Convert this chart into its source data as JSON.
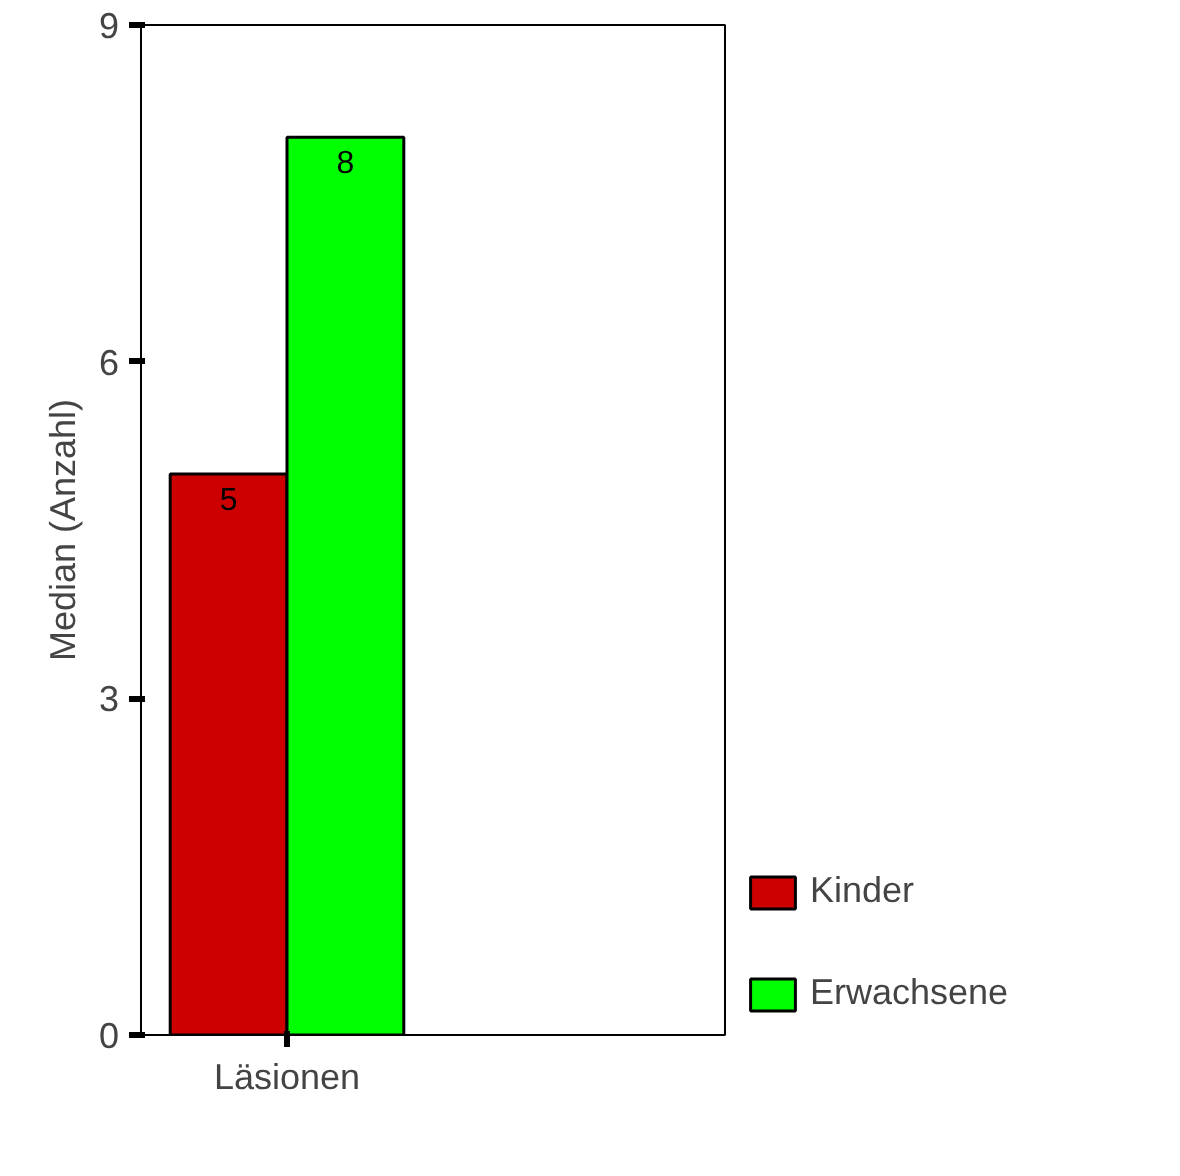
{
  "chart_data": {
    "type": "bar",
    "ylabel": "Median (Anzahl)",
    "categories": [
      "Läsionen"
    ],
    "series": [
      {
        "name": "Kinder",
        "color": "#cc0000",
        "values": [
          5
        ]
      },
      {
        "name": "Erwachsene",
        "color": "#00ff00",
        "values": [
          8
        ]
      }
    ],
    "ylim": [
      0,
      9
    ],
    "yticks": [
      0,
      3,
      6,
      9
    ],
    "grid": false,
    "legend": "bottom right",
    "data_labels": true
  }
}
